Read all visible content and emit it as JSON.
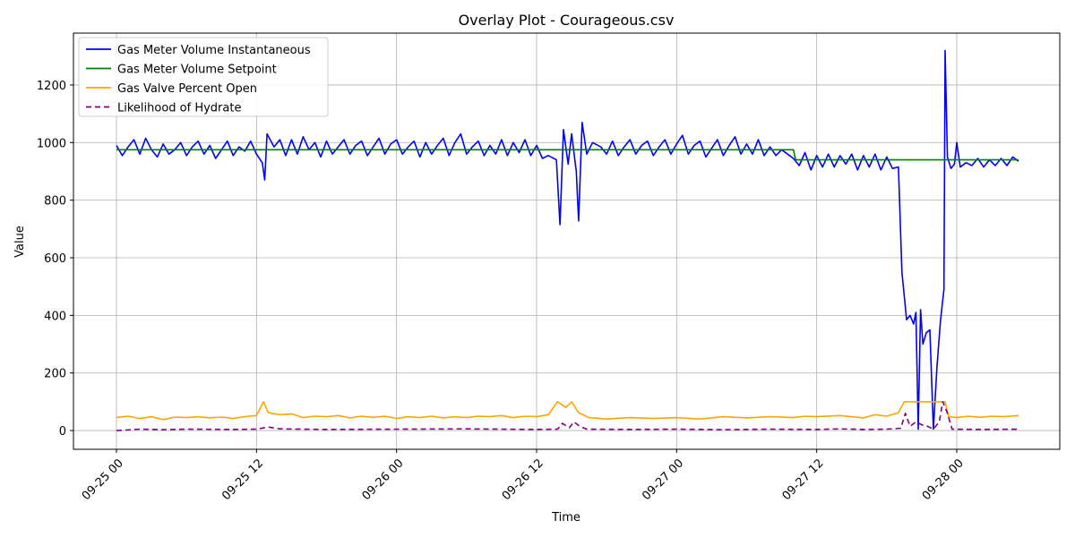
{
  "chart_data": {
    "type": "line",
    "title": "Overlay Plot - Courageous.csv",
    "xlabel": "Time",
    "ylabel": "Value",
    "x_range_hours": [
      0,
      77.5
    ],
    "ylim": [
      -65,
      1380
    ],
    "x_ticks": [
      {
        "hour": 0,
        "label": "09-25 00"
      },
      {
        "hour": 12,
        "label": "09-25 12"
      },
      {
        "hour": 24,
        "label": "09-26 00"
      },
      {
        "hour": 36,
        "label": "09-26 12"
      },
      {
        "hour": 48,
        "label": "09-27 00"
      },
      {
        "hour": 60,
        "label": "09-27 12"
      },
      {
        "hour": 72,
        "label": "09-28 00"
      }
    ],
    "y_ticks": [
      0,
      200,
      400,
      600,
      800,
      1000,
      1200
    ],
    "grid": true,
    "legend_position": "top-left",
    "series": [
      {
        "name": "Gas Meter Volume Instantaneous",
        "color": "#0000ff",
        "style": "solid",
        "points": [
          [
            0,
            990
          ],
          [
            0.5,
            955
          ],
          [
            1,
            985
          ],
          [
            1.5,
            1010
          ],
          [
            2,
            960
          ],
          [
            2.5,
            1015
          ],
          [
            3,
            975
          ],
          [
            3.5,
            950
          ],
          [
            4,
            995
          ],
          [
            4.5,
            960
          ],
          [
            5,
            975
          ],
          [
            5.5,
            1000
          ],
          [
            6,
            955
          ],
          [
            6.5,
            985
          ],
          [
            7,
            1005
          ],
          [
            7.5,
            960
          ],
          [
            8,
            990
          ],
          [
            8.5,
            945
          ],
          [
            9,
            975
          ],
          [
            9.5,
            1005
          ],
          [
            10,
            955
          ],
          [
            10.5,
            985
          ],
          [
            11,
            970
          ],
          [
            11.5,
            1005
          ],
          [
            12,
            960
          ],
          [
            12.5,
            930
          ],
          [
            12.7,
            870
          ],
          [
            12.9,
            1030
          ],
          [
            13.5,
            985
          ],
          [
            14,
            1010
          ],
          [
            14.5,
            955
          ],
          [
            15,
            1010
          ],
          [
            15.5,
            960
          ],
          [
            16,
            1020
          ],
          [
            16.5,
            975
          ],
          [
            17,
            1000
          ],
          [
            17.5,
            950
          ],
          [
            18,
            1005
          ],
          [
            18.5,
            960
          ],
          [
            19,
            985
          ],
          [
            19.5,
            1010
          ],
          [
            20,
            960
          ],
          [
            20.5,
            990
          ],
          [
            21,
            1005
          ],
          [
            21.5,
            955
          ],
          [
            22,
            985
          ],
          [
            22.5,
            1015
          ],
          [
            23,
            960
          ],
          [
            23.5,
            995
          ],
          [
            24,
            1010
          ],
          [
            24.5,
            960
          ],
          [
            25,
            985
          ],
          [
            25.5,
            1005
          ],
          [
            26,
            950
          ],
          [
            26.5,
            1000
          ],
          [
            27,
            960
          ],
          [
            27.5,
            990
          ],
          [
            28,
            1015
          ],
          [
            28.5,
            955
          ],
          [
            29,
            1000
          ],
          [
            29.5,
            1030
          ],
          [
            30,
            960
          ],
          [
            30.5,
            985
          ],
          [
            31,
            1005
          ],
          [
            31.5,
            955
          ],
          [
            32,
            990
          ],
          [
            32.5,
            960
          ],
          [
            33,
            1010
          ],
          [
            33.5,
            955
          ],
          [
            34,
            1000
          ],
          [
            34.5,
            965
          ],
          [
            35,
            1010
          ],
          [
            35.5,
            955
          ],
          [
            36,
            990
          ],
          [
            36.5,
            945
          ],
          [
            37,
            955
          ],
          [
            37.7,
            940
          ],
          [
            38,
            715
          ],
          [
            38.3,
            1045
          ],
          [
            38.7,
            925
          ],
          [
            39,
            1030
          ],
          [
            39.4,
            900
          ],
          [
            39.6,
            728
          ],
          [
            39.9,
            1070
          ],
          [
            40.3,
            960
          ],
          [
            40.8,
            1000
          ],
          [
            41.5,
            985
          ],
          [
            42,
            960
          ],
          [
            42.5,
            1005
          ],
          [
            43,
            955
          ],
          [
            43.5,
            985
          ],
          [
            44,
            1010
          ],
          [
            44.5,
            960
          ],
          [
            45,
            990
          ],
          [
            45.5,
            1005
          ],
          [
            46,
            955
          ],
          [
            46.5,
            985
          ],
          [
            47,
            1010
          ],
          [
            47.5,
            960
          ],
          [
            48,
            995
          ],
          [
            48.5,
            1025
          ],
          [
            49,
            960
          ],
          [
            49.5,
            990
          ],
          [
            50,
            1005
          ],
          [
            50.5,
            950
          ],
          [
            51,
            980
          ],
          [
            51.5,
            1010
          ],
          [
            52,
            955
          ],
          [
            52.5,
            990
          ],
          [
            53,
            1020
          ],
          [
            53.5,
            960
          ],
          [
            54,
            995
          ],
          [
            54.5,
            960
          ],
          [
            55,
            1010
          ],
          [
            55.5,
            955
          ],
          [
            56,
            985
          ],
          [
            56.5,
            955
          ],
          [
            57,
            975
          ],
          [
            57.5,
            960
          ],
          [
            58,
            945
          ],
          [
            58.5,
            920
          ],
          [
            59,
            965
          ],
          [
            59.5,
            905
          ],
          [
            60,
            955
          ],
          [
            60.5,
            915
          ],
          [
            61,
            960
          ],
          [
            61.5,
            915
          ],
          [
            62,
            955
          ],
          [
            62.5,
            925
          ],
          [
            63,
            960
          ],
          [
            63.5,
            905
          ],
          [
            64,
            955
          ],
          [
            64.5,
            915
          ],
          [
            65,
            960
          ],
          [
            65.5,
            905
          ],
          [
            66,
            950
          ],
          [
            66.5,
            910
          ],
          [
            67,
            915
          ],
          [
            67.3,
            550
          ],
          [
            67.7,
            385
          ],
          [
            68,
            400
          ],
          [
            68.3,
            370
          ],
          [
            68.5,
            410
          ],
          [
            68.7,
            5
          ],
          [
            68.9,
            420
          ],
          [
            69.1,
            300
          ],
          [
            69.4,
            340
          ],
          [
            69.7,
            350
          ],
          [
            70,
            5
          ],
          [
            70.3,
            220
          ],
          [
            70.6,
            380
          ],
          [
            70.9,
            490
          ],
          [
            71,
            1320
          ],
          [
            71.2,
            950
          ],
          [
            71.5,
            910
          ],
          [
            71.8,
            925
          ],
          [
            72,
            1000
          ],
          [
            72.3,
            915
          ],
          [
            72.8,
            930
          ],
          [
            73.3,
            920
          ],
          [
            73.8,
            945
          ],
          [
            74.3,
            915
          ],
          [
            74.8,
            940
          ],
          [
            75.3,
            920
          ],
          [
            75.8,
            945
          ],
          [
            76.3,
            920
          ],
          [
            76.8,
            950
          ],
          [
            77.3,
            935
          ]
        ]
      },
      {
        "name": "Gas Meter Volume Setpoint",
        "color": "#008000",
        "style": "solid",
        "points": [
          [
            0,
            975
          ],
          [
            58,
            975
          ],
          [
            58.2,
            940
          ],
          [
            77.3,
            940
          ]
        ]
      },
      {
        "name": "Gas Valve Percent Open",
        "color": "#ffa500",
        "style": "solid",
        "points": [
          [
            0,
            45
          ],
          [
            1,
            50
          ],
          [
            2,
            42
          ],
          [
            3,
            48
          ],
          [
            4,
            38
          ],
          [
            5,
            47
          ],
          [
            6,
            45
          ],
          [
            7,
            48
          ],
          [
            8,
            44
          ],
          [
            9,
            47
          ],
          [
            10,
            42
          ],
          [
            11,
            48
          ],
          [
            12,
            52
          ],
          [
            12.6,
            100
          ],
          [
            13,
            62
          ],
          [
            14,
            55
          ],
          [
            15,
            58
          ],
          [
            16,
            45
          ],
          [
            17,
            50
          ],
          [
            18,
            48
          ],
          [
            19,
            52
          ],
          [
            20,
            44
          ],
          [
            21,
            50
          ],
          [
            22,
            46
          ],
          [
            23,
            50
          ],
          [
            24,
            42
          ],
          [
            25,
            48
          ],
          [
            26,
            45
          ],
          [
            27,
            50
          ],
          [
            28,
            44
          ],
          [
            29,
            48
          ],
          [
            30,
            45
          ],
          [
            31,
            50
          ],
          [
            32,
            48
          ],
          [
            33,
            52
          ],
          [
            34,
            45
          ],
          [
            35,
            50
          ],
          [
            36,
            48
          ],
          [
            37,
            55
          ],
          [
            37.8,
            100
          ],
          [
            38.5,
            80
          ],
          [
            39,
            100
          ],
          [
            39.6,
            62
          ],
          [
            40.5,
            45
          ],
          [
            42,
            40
          ],
          [
            44,
            45
          ],
          [
            46,
            42
          ],
          [
            48,
            45
          ],
          [
            50,
            40
          ],
          [
            52,
            48
          ],
          [
            54,
            44
          ],
          [
            56,
            48
          ],
          [
            58,
            45
          ],
          [
            59,
            50
          ],
          [
            60,
            48
          ],
          [
            62,
            52
          ],
          [
            64,
            44
          ],
          [
            65,
            55
          ],
          [
            66,
            50
          ],
          [
            67,
            62
          ],
          [
            67.5,
            100
          ],
          [
            71,
            100
          ],
          [
            71.3,
            48
          ],
          [
            72,
            45
          ],
          [
            73,
            50
          ],
          [
            74,
            46
          ],
          [
            75,
            50
          ],
          [
            76,
            48
          ],
          [
            77.3,
            52
          ]
        ]
      },
      {
        "name": "Likelihood of Hydrate",
        "color": "#800080",
        "style": "dashed",
        "points": [
          [
            0,
            0
          ],
          [
            2,
            5
          ],
          [
            4,
            3
          ],
          [
            6,
            5
          ],
          [
            10,
            4
          ],
          [
            12,
            5
          ],
          [
            13,
            12
          ],
          [
            14,
            6
          ],
          [
            18,
            4
          ],
          [
            24,
            5
          ],
          [
            30,
            6
          ],
          [
            36,
            4
          ],
          [
            37.8,
            5
          ],
          [
            38.2,
            25
          ],
          [
            38.8,
            10
          ],
          [
            39.2,
            30
          ],
          [
            39.7,
            15
          ],
          [
            40.3,
            5
          ],
          [
            44,
            4
          ],
          [
            48,
            5
          ],
          [
            52,
            3
          ],
          [
            56,
            5
          ],
          [
            60,
            4
          ],
          [
            62,
            6
          ],
          [
            64,
            4
          ],
          [
            66,
            5
          ],
          [
            67.2,
            8
          ],
          [
            67.6,
            60
          ],
          [
            68,
            15
          ],
          [
            68.5,
            30
          ],
          [
            69,
            20
          ],
          [
            69.5,
            15
          ],
          [
            70,
            5
          ],
          [
            70.5,
            30
          ],
          [
            70.8,
            100
          ],
          [
            71.2,
            60
          ],
          [
            71.6,
            5
          ],
          [
            74,
            4
          ],
          [
            77.3,
            5
          ]
        ]
      }
    ]
  }
}
